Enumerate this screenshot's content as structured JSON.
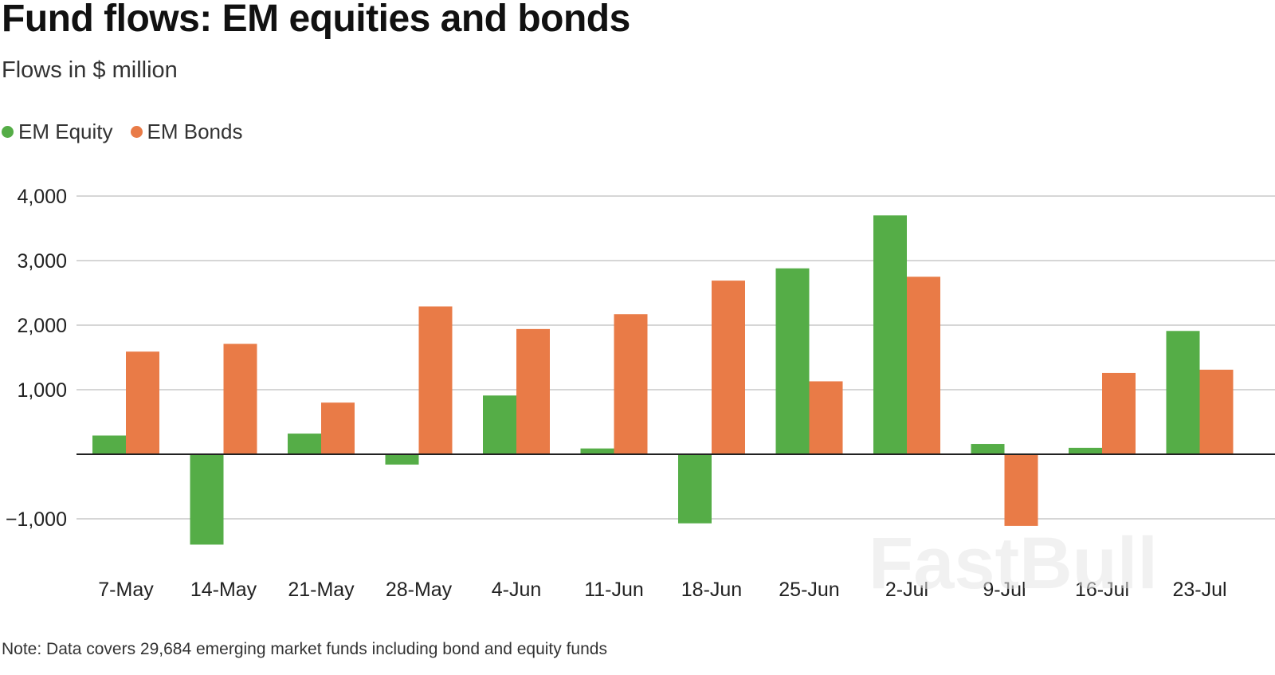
{
  "chart_data": {
    "type": "bar",
    "title": "Fund flows: EM equities and bonds",
    "subtitle": "Flows in $ million",
    "categories": [
      "7-May",
      "14-May",
      "21-May",
      "28-May",
      "4-Jun",
      "11-Jun",
      "18-Jun",
      "25-Jun",
      "2-Jul",
      "9-Jul",
      "16-Jul",
      "23-Jul"
    ],
    "series": [
      {
        "name": "EM Equity",
        "color": "#55ad47",
        "values": [
          290,
          -1400,
          320,
          -160,
          910,
          90,
          -1070,
          2880,
          3700,
          160,
          100,
          1910
        ]
      },
      {
        "name": "EM Bonds",
        "color": "#e97b47",
        "values": [
          1590,
          1710,
          800,
          2290,
          1940,
          2170,
          2690,
          1130,
          2750,
          -1110,
          1260,
          1310
        ]
      }
    ],
    "ylim": [
      -1500,
      4000
    ],
    "yticks": [
      4000,
      3000,
      2000,
      1000,
      -1000
    ],
    "ytick_labels": [
      "4,000",
      "3,000",
      "2,000",
      "1,000",
      "−1,000"
    ],
    "grid": true,
    "legend": "top-left",
    "xlabel": "",
    "ylabel": "",
    "note": "Note: Data covers 29,684 emerging market funds including bond and equity funds",
    "watermark": "FastBull"
  }
}
